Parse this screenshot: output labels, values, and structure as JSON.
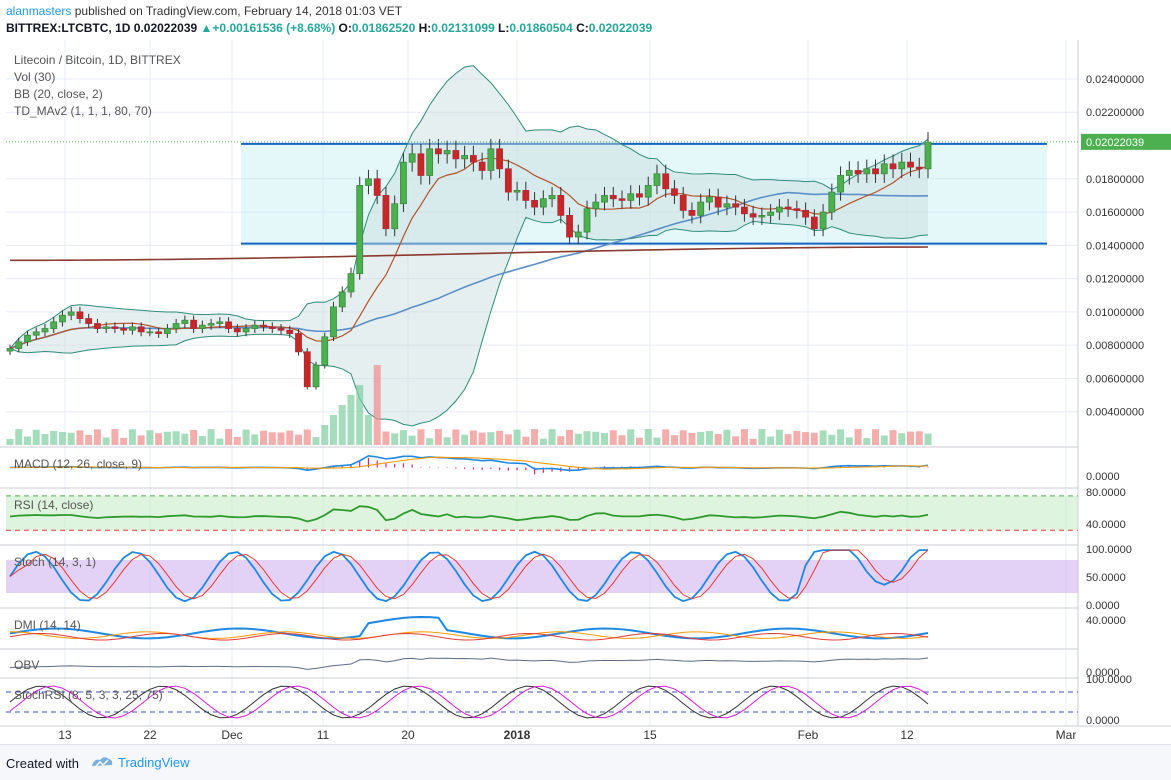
{
  "header": {
    "author": "alanmasters",
    "published_text": "published on TradingView.com, February 14, 2018 01:03 VET",
    "symbol": "BITTREX:LTCBTC, 1D",
    "last": "0.02022039",
    "change_arrow": "▲",
    "change": "+0.00161536 (+8.68%)",
    "o_label": "O:",
    "o": "0.01862520",
    "h_label": "H:",
    "h": "0.02131099",
    "l_label": "L:",
    "l": "0.01860504",
    "c_label": "C:",
    "c": "0.02022039"
  },
  "legend": {
    "title": "Litecoin / Bitcoin, 1D, BITTREX",
    "vol": "Vol (30)",
    "bb": "BB (20, close, 2)",
    "td": "TD_MAv2 (1, 1, 1, 80, 70)"
  },
  "price_axis": {
    "labels": [
      "0.02400000",
      "0.02200000",
      "0.01800000",
      "0.01600000",
      "0.01400000",
      "0.01200000",
      "0.01000000",
      "0.00800000",
      "0.00600000",
      "0.00400000"
    ],
    "current": "0.02022039"
  },
  "time_axis": {
    "labels": [
      "13",
      "22",
      "Dec",
      "11",
      "20",
      "2018",
      "15",
      "Feb",
      "12",
      "Mar"
    ]
  },
  "panes": {
    "macd": {
      "label": "MACD (12, 26, close, 9)",
      "axis": [
        "0.0000"
      ]
    },
    "rsi": {
      "label": "RSI (14, close)",
      "axis": [
        "80.0000",
        "40.0000"
      ]
    },
    "stoch": {
      "label": "Stoch (14, 3, 1)",
      "axis": [
        "100.0000",
        "50.0000",
        "0.0000"
      ]
    },
    "dmi": {
      "label": "DMI (14, 14)",
      "axis": [
        "40.0000"
      ]
    },
    "obv": {
      "label": "OBV",
      "axis": [
        "0.0000"
      ]
    },
    "stochrsi": {
      "label": "StochRSI (8, 5, 3, 3, 25, 75)",
      "axis": [
        "100.0000",
        "0.0000"
      ]
    }
  },
  "chart_data": {
    "type": "candlestick",
    "title": "Litecoin / Bitcoin, 1D, BITTREX",
    "ylim": [
      0.002,
      0.0255
    ],
    "range_box": {
      "top": 0.0201,
      "bottom": 0.0141
    },
    "close": [
      0.0078,
      0.0082,
      0.0086,
      0.0088,
      0.009,
      0.0094,
      0.0098,
      0.01,
      0.0096,
      0.0093,
      0.009,
      0.0091,
      0.009,
      0.0089,
      0.0091,
      0.0088,
      0.0088,
      0.0087,
      0.009,
      0.0093,
      0.0095,
      0.009,
      0.0092,
      0.0093,
      0.0094,
      0.009,
      0.0088,
      0.009,
      0.0092,
      0.0091,
      0.009,
      0.0089,
      0.0087,
      0.0076,
      0.0055,
      0.0068,
      0.0085,
      0.0103,
      0.0112,
      0.0123,
      0.0176,
      0.018,
      0.017,
      0.015,
      0.0165,
      0.019,
      0.0195,
      0.0182,
      0.0198,
      0.0195,
      0.0197,
      0.0192,
      0.0194,
      0.019,
      0.0185,
      0.0198,
      0.0186,
      0.0172,
      0.0173,
      0.0167,
      0.0163,
      0.0168,
      0.017,
      0.0158,
      0.0145,
      0.0148,
      0.0162,
      0.0166,
      0.017,
      0.0168,
      0.0167,
      0.0171,
      0.0169,
      0.0176,
      0.0183,
      0.0174,
      0.017,
      0.0161,
      0.0158,
      0.0166,
      0.0169,
      0.0163,
      0.0165,
      0.0163,
      0.0159,
      0.0157,
      0.0158,
      0.016,
      0.0163,
      0.0162,
      0.0161,
      0.0157,
      0.015,
      0.016,
      0.0172,
      0.0182,
      0.0185,
      0.0183,
      0.0186,
      0.0183,
      0.0189,
      0.0186,
      0.019,
      0.0187,
      0.0186,
      0.0202
    ]
  }
}
